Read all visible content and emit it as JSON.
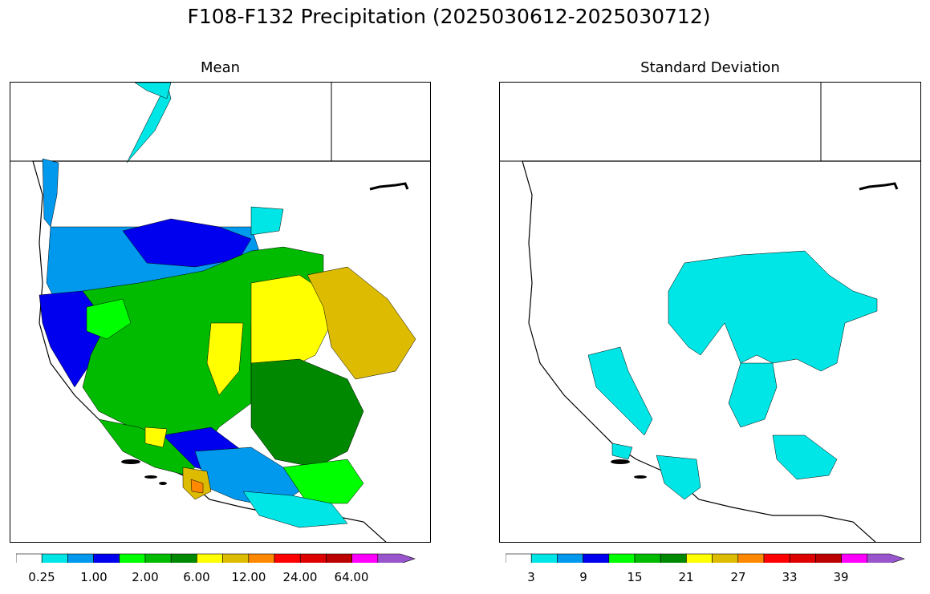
{
  "title": "F108-F132 Precipitation (2025030612-2025030712)",
  "panels": [
    {
      "title": "Mean"
    },
    {
      "title": "Standard Deviation"
    }
  ],
  "colorbars": [
    {
      "labels": [
        "0.25",
        "1.00",
        "2.00",
        "6.00",
        "12.00",
        "24.00",
        "64.00"
      ],
      "colors": [
        "#ffffff",
        "#00e5e5",
        "#0099ee",
        "#0000ee",
        "#00ff00",
        "#00bb00",
        "#008800",
        "#ffff00",
        "#ddbb00",
        "#ff8800",
        "#ff0000",
        "#dd0000",
        "#bb0000",
        "#ff00ff",
        "#9955cc"
      ]
    },
    {
      "labels": [
        "3",
        "9",
        "15",
        "21",
        "27",
        "33",
        "39"
      ],
      "colors": [
        "#ffffff",
        "#00e5e5",
        "#0099ee",
        "#0000ee",
        "#00ff00",
        "#00bb00",
        "#008800",
        "#ffff00",
        "#ddbb00",
        "#ff8800",
        "#ff0000",
        "#dd0000",
        "#bb0000",
        "#ff00ff",
        "#9955cc"
      ]
    }
  ]
}
